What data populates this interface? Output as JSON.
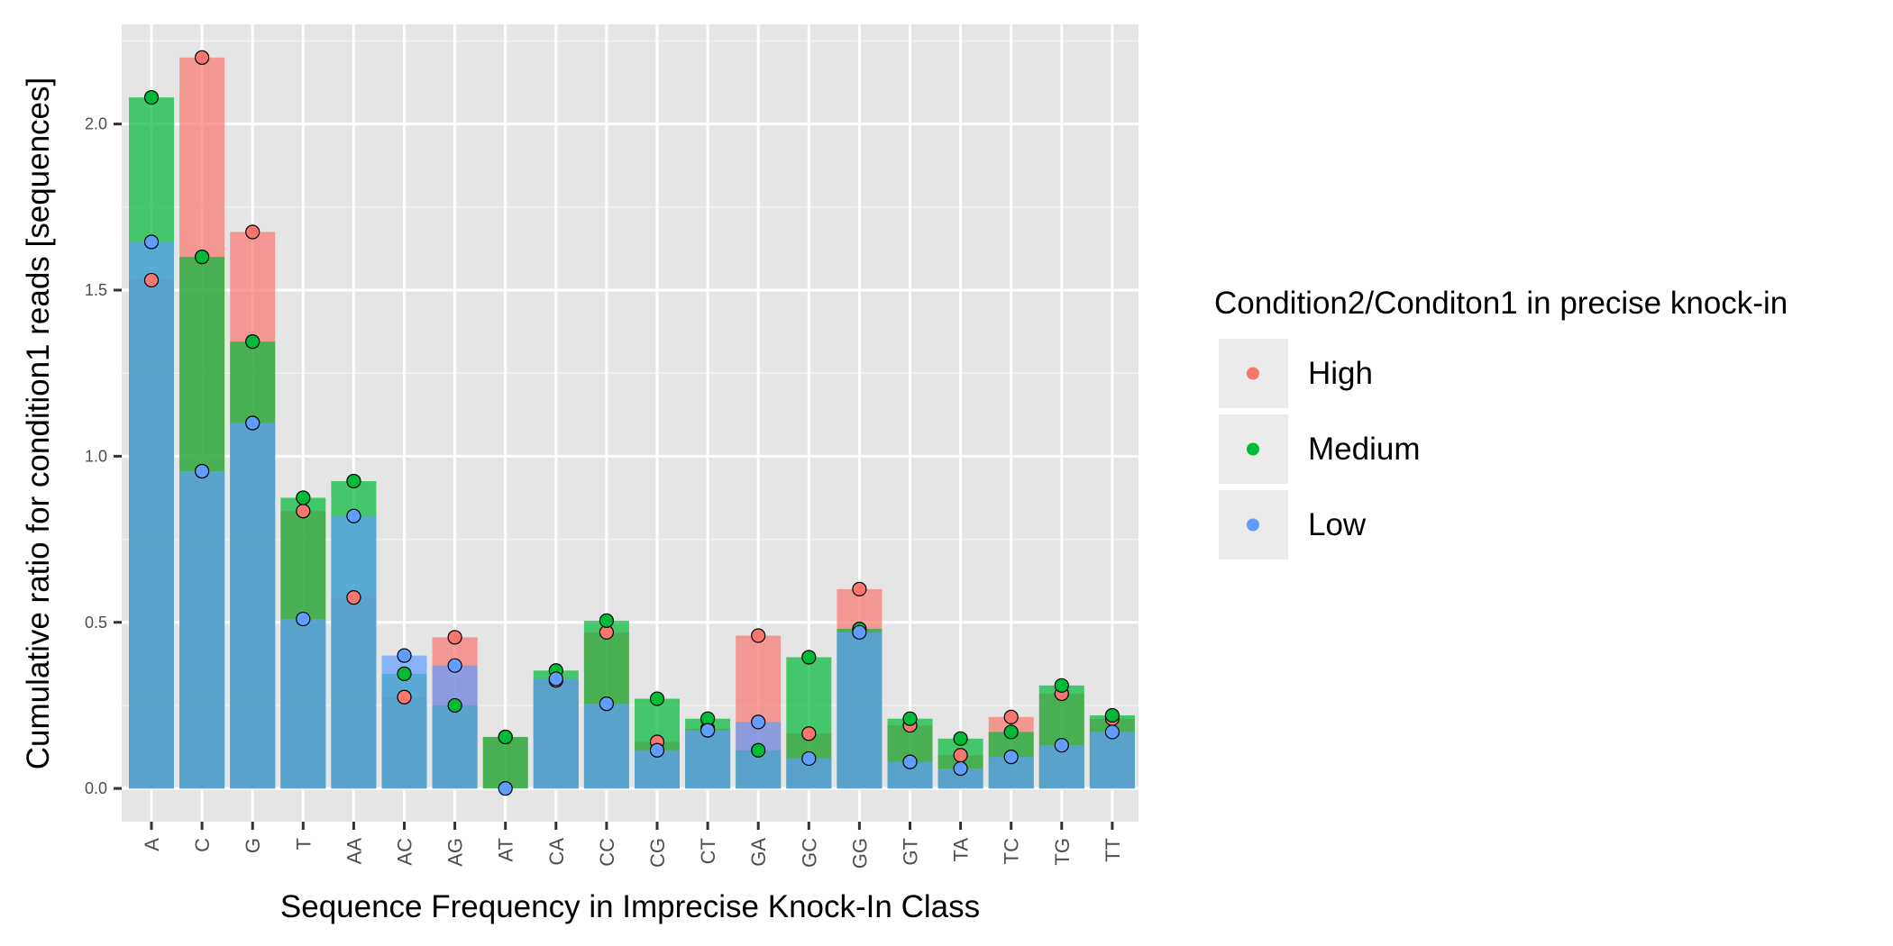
{
  "chart_data": {
    "type": "bar",
    "xlabel": "Sequence Frequency in Imprecise Knock-In Class",
    "ylabel": "Cumulative ratio for condition1 reads [sequences]",
    "ylim": [
      -0.1,
      2.3
    ],
    "yticks": [
      0.0,
      0.5,
      1.0,
      1.5,
      2.0
    ],
    "ytick_labels": [
      "0.0",
      "0.5",
      "1.0",
      "1.5",
      "2.0"
    ],
    "grid": true,
    "legend_position": "right",
    "legend_title": "Condition2/Conditon1 in precise knock-in",
    "categories": [
      "A",
      "C",
      "G",
      "T",
      "AA",
      "AC",
      "AG",
      "AT",
      "CA",
      "CC",
      "CG",
      "CT",
      "GA",
      "GC",
      "GG",
      "GT",
      "TA",
      "TC",
      "TG",
      "TT"
    ],
    "series": [
      {
        "name": "High",
        "color": "#F8766D",
        "values": [
          1.53,
          2.2,
          1.675,
          0.835,
          0.575,
          0.275,
          0.455,
          0.155,
          0.325,
          0.47,
          0.14,
          0.18,
          0.46,
          0.165,
          0.6,
          0.19,
          0.1,
          0.215,
          0.285,
          0.21
        ]
      },
      {
        "name": "Medium",
        "color": "#00BA38",
        "values": [
          2.08,
          1.6,
          1.345,
          0.875,
          0.925,
          0.345,
          0.25,
          0.155,
          0.355,
          0.505,
          0.27,
          0.21,
          0.115,
          0.395,
          0.48,
          0.21,
          0.15,
          0.17,
          0.31,
          0.22
        ]
      },
      {
        "name": "Low",
        "color": "#619CFF",
        "values": [
          1.645,
          0.955,
          1.1,
          0.51,
          0.82,
          0.4,
          0.37,
          0.0,
          0.33,
          0.255,
          0.115,
          0.175,
          0.2,
          0.09,
          0.47,
          0.08,
          0.06,
          0.095,
          0.13,
          0.17
        ]
      }
    ]
  }
}
